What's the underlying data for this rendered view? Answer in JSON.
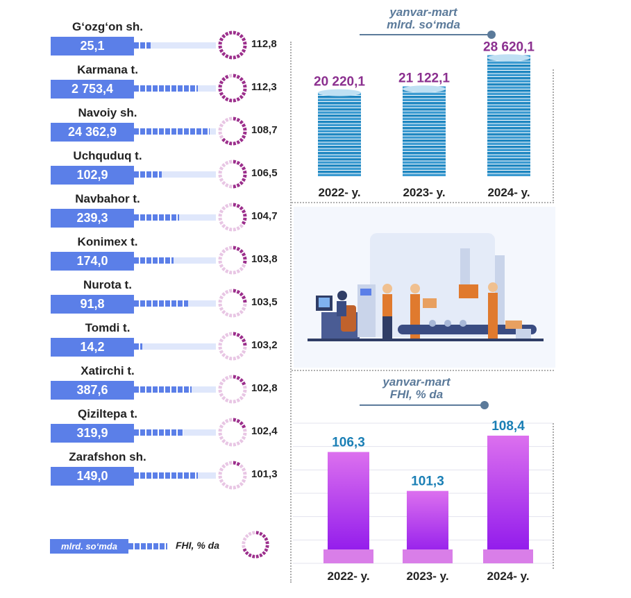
{
  "districts": [
    {
      "name": "G‘ozg‘on sh.",
      "volume": "25,1",
      "growth": "112,8",
      "growth_value": 112.8,
      "bar_fraction": 0.2
    },
    {
      "name": "Karmana t.",
      "volume": "2 753,4",
      "growth": "112,3",
      "growth_value": 112.3,
      "bar_fraction": 0.78
    },
    {
      "name": "Navoiy sh.",
      "volume": "24 362,9",
      "growth": "108,7",
      "growth_value": 108.7,
      "bar_fraction": 0.92
    },
    {
      "name": "Uchquduq t.",
      "volume": "102,9",
      "growth": "106,5",
      "growth_value": 106.5,
      "bar_fraction": 0.34
    },
    {
      "name": "Navbahor t.",
      "volume": "239,3",
      "growth": "104,7",
      "growth_value": 104.7,
      "bar_fraction": 0.55
    },
    {
      "name": "Konimex t.",
      "volume": "174,0",
      "growth": "103,8",
      "growth_value": 103.8,
      "bar_fraction": 0.48
    },
    {
      "name": "Nurota t.",
      "volume": "91,8",
      "growth": "103,5",
      "growth_value": 103.5,
      "bar_fraction": 0.66
    },
    {
      "name": "Tomdi t.",
      "volume": "14,2",
      "growth": "103,2",
      "growth_value": 103.2,
      "bar_fraction": 0.1
    },
    {
      "name": "Xatirchi t.",
      "volume": "387,6",
      "growth": "102,8",
      "growth_value": 102.8,
      "bar_fraction": 0.7
    },
    {
      "name": "Qiziltepa t.",
      "volume": "319,9",
      "growth": "102,4",
      "growth_value": 102.4,
      "bar_fraction": 0.6
    },
    {
      "name": "Zarafshon sh.",
      "volume": "149,0",
      "growth": "101,3",
      "growth_value": 101.3,
      "bar_fraction": 0.78
    }
  ],
  "legend": {
    "volume_label": "mlrd. so‘mda",
    "growth_label": "FHI, % da"
  },
  "colors": {
    "blue": "#5b7fe8",
    "blue_light": "#dfe7fb",
    "ring_dark": "#9c2f8c",
    "ring_light": "#e8c6e4",
    "coin_dark": "#1e86c0",
    "coin_light": "#bfe0f3",
    "purple_value": "#8b2f8f",
    "teal_value": "#1a7fb5",
    "violet_top": "#dc70ee",
    "violet_bottom": "#8a12ec",
    "title": "#5b7a9a"
  },
  "chart_data": [
    {
      "type": "bar",
      "style": "coin stacks",
      "title": "yanvar-mart",
      "subtitle": "mlrd. so‘mda",
      "categories": [
        "2022- y.",
        "2023- y.",
        "2024- y."
      ],
      "values": [
        20220.1,
        21122.1,
        28620.1
      ],
      "value_labels": [
        "20 220,1",
        "21 122,1",
        "28 620,1"
      ],
      "ylim": [
        0,
        30000
      ]
    },
    {
      "type": "bar",
      "title": "yanvar-mart",
      "subtitle": "FHI, % da",
      "categories": [
        "2022- y.",
        "2023- y.",
        "2024- y."
      ],
      "values": [
        106.3,
        101.3,
        108.4
      ],
      "value_labels": [
        "106,3",
        "101,3",
        "108,4"
      ],
      "ylim": [
        92,
        110
      ]
    }
  ]
}
